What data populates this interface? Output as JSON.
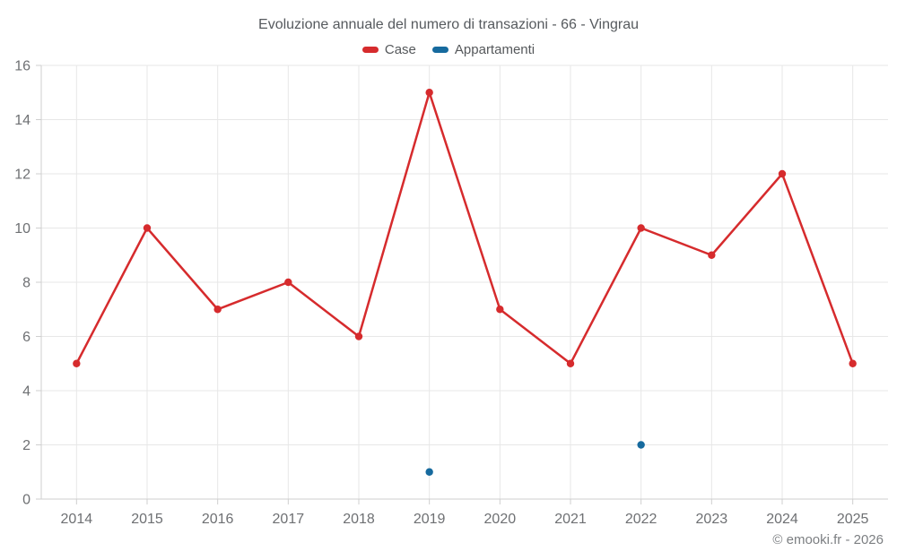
{
  "footer": {
    "text": "© emooki.fr - 2026"
  },
  "chart_data": {
    "type": "line",
    "title": "Evoluzione annuale del numero di transazioni - 66 - Vingrau",
    "xlabel": "",
    "ylabel": "",
    "categories": [
      "2014",
      "2015",
      "2016",
      "2017",
      "2018",
      "2019",
      "2020",
      "2021",
      "2022",
      "2023",
      "2024",
      "2025"
    ],
    "series": [
      {
        "name": "Case",
        "color": "#d62b2d",
        "marker": "circle",
        "values": [
          5,
          10,
          7,
          8,
          6,
          15,
          7,
          5,
          10,
          9,
          12,
          5
        ]
      },
      {
        "name": "Appartamenti",
        "color": "#166a9e",
        "marker": "circle",
        "values": [
          null,
          null,
          null,
          null,
          null,
          1,
          null,
          null,
          2,
          null,
          null,
          null
        ]
      }
    ],
    "ylim": [
      0,
      16
    ],
    "yticks": [
      0,
      2,
      4,
      6,
      8,
      10,
      12,
      14,
      16
    ],
    "grid": "on",
    "legend_position": "top-center",
    "colors": {
      "gridline": "#e7e7e7",
      "axis": "#cfcfcf",
      "tick_label": "#6e7073",
      "title_text": "#565a5e"
    }
  }
}
